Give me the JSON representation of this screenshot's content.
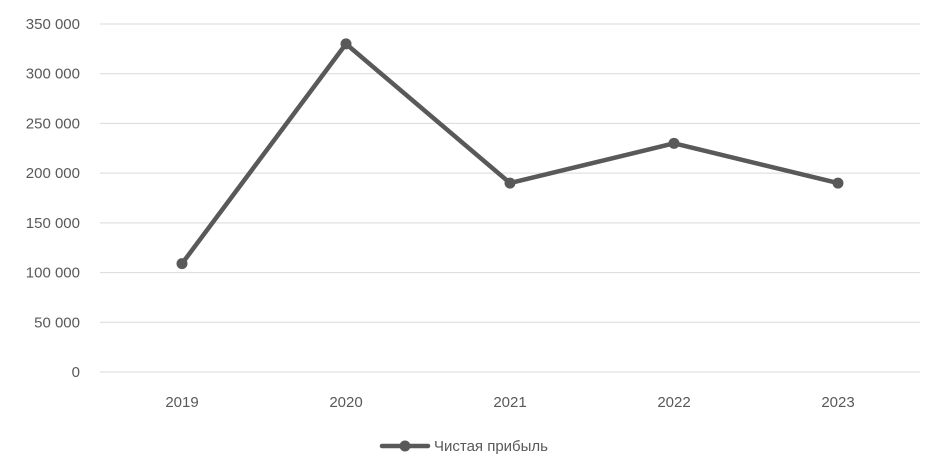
{
  "chart_data": {
    "type": "line",
    "title": "",
    "xlabel": "",
    "ylabel": "",
    "categories": [
      "2019",
      "2020",
      "2021",
      "2022",
      "2023"
    ],
    "series": [
      {
        "name": "Чистая прибыль",
        "values": [
          109000,
          330000,
          190000,
          230000,
          190000
        ],
        "color": "#595959"
      }
    ],
    "ylim": [
      0,
      350000
    ],
    "yticks": [
      0,
      50000,
      100000,
      150000,
      200000,
      250000,
      300000,
      350000
    ],
    "ytick_labels": [
      "0",
      "50 000",
      "100 000",
      "150 000",
      "200 000",
      "250 000",
      "300 000",
      "350 000"
    ],
    "grid": true,
    "gridline_color": "#d9d9d9",
    "legend_position": "bottom"
  }
}
